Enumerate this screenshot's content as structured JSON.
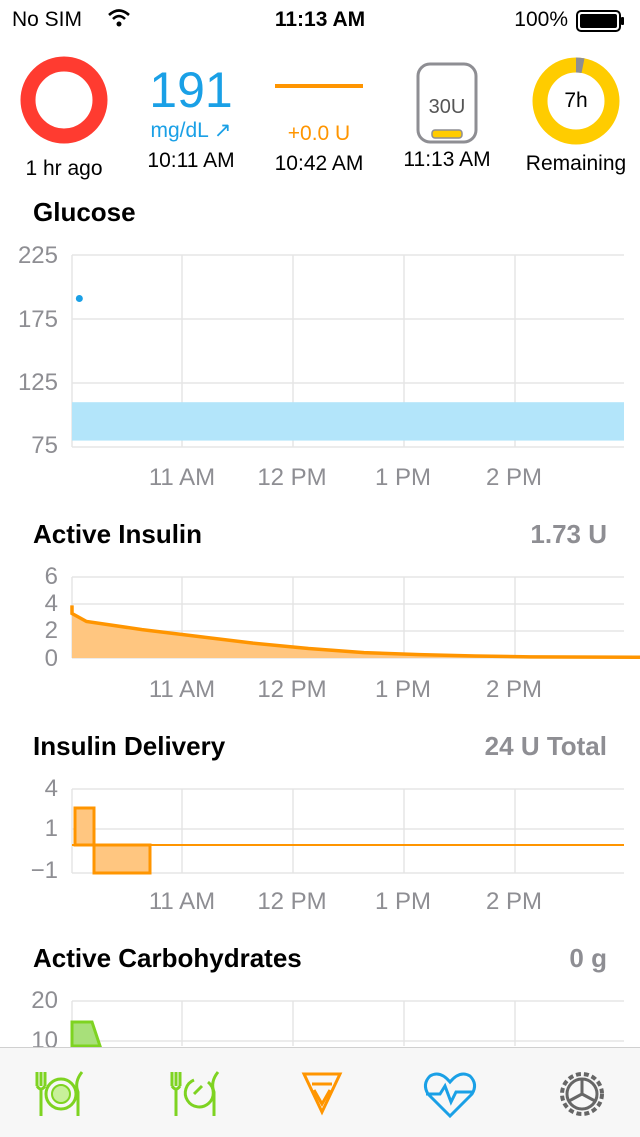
{
  "status": {
    "carrier": "No SIM",
    "time": "11:13 AM",
    "battery": "100%"
  },
  "hud": {
    "loop_time": "1 hr ago",
    "glucose_value": "191",
    "glucose_unit": "mg/dL ↗",
    "glucose_time": "10:11 AM",
    "temp_basal": "+0.0 U",
    "temp_basal_time": "10:42 AM",
    "reservoir": "30U",
    "reservoir_time": "11:13 AM",
    "sensor_remaining": "7h",
    "sensor_label": "Remaining"
  },
  "colors": {
    "loop_red": "#ff3b30",
    "glucose_blue": "#1aa0e6",
    "insulin_orange": "#ff9500",
    "carbs_green": "#7ed321",
    "target_blue": "#b3e5fa"
  },
  "x_ticks": [
    "11 AM",
    "12 PM",
    "1 PM",
    "2 PM"
  ],
  "glucose_chart": {
    "title": "Glucose",
    "y_ticks": [
      "225",
      "175",
      "125",
      "75"
    ]
  },
  "insulin_chart": {
    "title": "Active Insulin",
    "value": "1.73 U",
    "y_ticks": [
      "6",
      "4",
      "2",
      "0"
    ]
  },
  "delivery_chart": {
    "title": "Insulin Delivery",
    "value": "24 U Total",
    "y_ticks": [
      "4",
      "1",
      "−1"
    ]
  },
  "carbs_chart": {
    "title": "Active Carbohydrates",
    "value": "0 g",
    "y_ticks": [
      "20",
      "10"
    ]
  },
  "chart_data": [
    {
      "type": "scatter",
      "title": "Glucose",
      "x": [
        "10:11"
      ],
      "y": [
        191
      ],
      "ylim": [
        75,
        225
      ],
      "target_range": [
        80,
        110
      ],
      "xticks": [
        "11 AM",
        "12 PM",
        "1 PM",
        "2 PM"
      ]
    },
    {
      "type": "area",
      "title": "Active Insulin",
      "x": [
        "10:00",
        "10:05",
        "10:10",
        "10:15",
        "10:30",
        "11:00",
        "11:30",
        "12:00",
        "12:30",
        "13:00",
        "13:30",
        "14:00",
        "14:30",
        "15:00"
      ],
      "y": [
        3.6,
        3.9,
        3.8,
        3.3,
        2.7,
        2.1,
        1.6,
        1.1,
        0.7,
        0.4,
        0.25,
        0.15,
        0.08,
        0.05
      ],
      "ylim": [
        0,
        6
      ]
    },
    {
      "type": "area",
      "title": "Insulin Delivery",
      "segments": [
        {
          "start": "10:03",
          "end": "10:10",
          "value": 2.3
        },
        {
          "start": "10:10",
          "end": "10:40",
          "value": -1
        }
      ],
      "ylim": [
        -1,
        4
      ]
    },
    {
      "type": "area",
      "title": "Active Carbohydrates",
      "x": [
        "10:00",
        "10:08",
        "10:12"
      ],
      "y": [
        15,
        15,
        0
      ],
      "ylim": [
        0,
        20
      ]
    }
  ]
}
